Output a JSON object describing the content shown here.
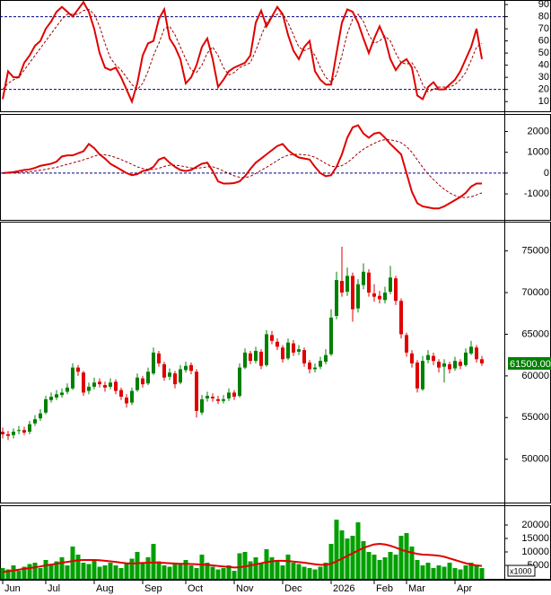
{
  "chart_data": [
    {
      "type": "line",
      "ylim": [
        2,
        93
      ],
      "yticks": [
        10,
        20,
        30,
        40,
        50,
        60,
        70,
        80,
        90
      ],
      "ref_lines": [
        20,
        80
      ],
      "ref_color": "#000080",
      "series": [
        {
          "color": "#e00000",
          "style": "solid",
          "values": [
            12,
            35,
            30,
            30,
            42,
            48,
            56,
            60,
            70,
            76,
            84,
            88,
            84,
            80,
            86,
            92,
            84,
            70,
            50,
            38,
            36,
            38,
            30,
            20,
            10,
            25,
            48,
            58,
            60,
            78,
            86,
            62,
            55,
            45,
            25,
            30,
            40,
            55,
            62,
            45,
            22,
            28,
            35,
            38,
            40,
            42,
            48,
            75,
            85,
            72,
            80,
            88,
            82,
            65,
            52,
            45,
            55,
            60,
            35,
            28,
            24,
            24,
            50,
            75,
            86,
            84,
            75,
            62,
            50,
            62,
            72,
            62,
            45,
            36,
            42,
            45,
            38,
            15,
            12,
            22,
            26,
            20,
            20,
            24,
            28,
            35,
            45,
            55,
            70,
            45
          ]
        },
        {
          "color": "#a00000",
          "style": "dashed",
          "values": [
            20,
            25,
            28,
            30,
            36,
            42,
            48,
            54,
            60,
            66,
            72,
            78,
            82,
            82,
            82,
            85,
            86,
            82,
            72,
            58,
            46,
            40,
            36,
            30,
            24,
            20,
            25,
            35,
            48,
            58,
            70,
            72,
            65,
            55,
            45,
            36,
            34,
            40,
            50,
            55,
            48,
            38,
            32,
            34,
            38,
            40,
            42,
            52,
            64,
            75,
            80,
            82,
            82,
            75,
            65,
            55,
            52,
            54,
            48,
            38,
            30,
            26,
            32,
            48,
            66,
            78,
            82,
            76,
            65,
            58,
            60,
            64,
            60,
            50,
            42,
            41,
            42,
            35,
            24,
            18,
            20,
            22,
            22,
            22,
            24,
            28,
            34,
            44,
            55,
            58
          ]
        }
      ]
    },
    {
      "type": "line",
      "ylim": [
        -2250,
        2800
      ],
      "yticks": [
        -1000,
        0,
        1000,
        2000
      ],
      "ref_lines": [
        0
      ],
      "ref_color": "#000080",
      "series": [
        {
          "color": "#e00000",
          "style": "solid",
          "values": [
            0,
            20,
            50,
            100,
            150,
            180,
            250,
            350,
            400,
            450,
            550,
            800,
            850,
            850,
            950,
            1050,
            1400,
            1200,
            900,
            700,
            450,
            300,
            150,
            0,
            -100,
            -50,
            100,
            150,
            300,
            650,
            750,
            500,
            300,
            150,
            100,
            150,
            300,
            450,
            500,
            100,
            -400,
            -500,
            -500,
            -480,
            -400,
            -150,
            200,
            500,
            700,
            900,
            1100,
            1300,
            1400,
            1100,
            900,
            750,
            700,
            650,
            300,
            0,
            -150,
            -100,
            300,
            900,
            1700,
            2200,
            2300,
            1900,
            1700,
            1900,
            1950,
            1700,
            1400,
            1150,
            900,
            0,
            -900,
            -1450,
            -1600,
            -1650,
            -1700,
            -1700,
            -1600,
            -1450,
            -1300,
            -1150,
            -950,
            -650,
            -500,
            -500
          ]
        },
        {
          "color": "#a00000",
          "style": "dashed",
          "values": [
            0,
            5,
            15,
            30,
            50,
            75,
            100,
            140,
            180,
            230,
            280,
            350,
            420,
            490,
            560,
            640,
            720,
            820,
            880,
            880,
            830,
            750,
            650,
            540,
            420,
            300,
            220,
            180,
            180,
            230,
            320,
            380,
            380,
            350,
            300,
            250,
            230,
            260,
            300,
            300,
            220,
            100,
            -20,
            -130,
            -200,
            -220,
            -150,
            -20,
            130,
            280,
            440,
            600,
            760,
            860,
            900,
            900,
            880,
            850,
            760,
            620,
            460,
            330,
            300,
            360,
            500,
            720,
            950,
            1150,
            1300,
            1430,
            1550,
            1610,
            1600,
            1550,
            1460,
            1280,
            1000,
            640,
            280,
            -40,
            -310,
            -560,
            -780,
            -950,
            -1080,
            -1160,
            -1180,
            -1140,
            -1050,
            -950
          ]
        }
      ]
    },
    {
      "type": "candlestick",
      "ylim": [
        44800,
        78400
      ],
      "yticks": [
        50000,
        55000,
        60000,
        65000,
        70000,
        75000
      ],
      "up_color": "#008000",
      "down_color": "#e00000",
      "open": [
        53300,
        53000,
        52900,
        53400,
        53500,
        53300,
        54300,
        54900,
        55600,
        57100,
        57400,
        57700,
        58100,
        58500,
        61000,
        60400,
        58200,
        58700,
        59300,
        58900,
        58700,
        59300,
        58300,
        57400,
        56800,
        58300,
        59700,
        59100,
        60300,
        62700,
        61400,
        59900,
        60300,
        59200,
        60700,
        61300,
        60500,
        55600,
        57300,
        57500,
        57200,
        57000,
        57300,
        58000,
        57600,
        61000,
        62700,
        61800,
        62900,
        61300,
        64900,
        64100,
        63400,
        62100,
        63900,
        62900,
        63100,
        61600,
        60800,
        61100,
        61700,
        62600,
        67200,
        71400,
        70100,
        72000,
        68100,
        70900,
        72400,
        69900,
        69600,
        69100,
        70100,
        71700,
        69000,
        64900,
        62700,
        61600,
        58400,
        61900,
        62400,
        61700,
        61100,
        61400,
        60900,
        61700,
        61300,
        62700,
        63400,
        62000
      ],
      "high": [
        53800,
        53400,
        53700,
        54000,
        53900,
        54600,
        55300,
        56000,
        57600,
        58000,
        58300,
        58500,
        59100,
        61500,
        61300,
        60600,
        59200,
        59800,
        59700,
        59300,
        59700,
        59600,
        58600,
        57800,
        58600,
        60300,
        60000,
        61000,
        63400,
        63000,
        61700,
        60900,
        60600,
        61300,
        61700,
        61600,
        60800,
        57700,
        58100,
        57900,
        57600,
        57700,
        58500,
        58300,
        61500,
        63300,
        63000,
        63500,
        63200,
        65500,
        65400,
        64500,
        63700,
        64500,
        64300,
        63700,
        63400,
        61900,
        61500,
        62300,
        63200,
        68000,
        72500,
        75500,
        73000,
        72400,
        71600,
        73500,
        72800,
        71000,
        70200,
        70700,
        73200,
        72000,
        69300,
        65200,
        63100,
        61900,
        62400,
        63100,
        62800,
        62000,
        62000,
        61700,
        62300,
        62000,
        63300,
        64200,
        63700,
        62400
      ],
      "low": [
        52500,
        52300,
        52500,
        53000,
        52900,
        53000,
        54000,
        54600,
        55400,
        56800,
        57100,
        57400,
        57800,
        58300,
        60000,
        57600,
        57800,
        58400,
        58600,
        58100,
        58400,
        57800,
        57100,
        56200,
        56500,
        58100,
        58600,
        58900,
        60100,
        61100,
        59400,
        59500,
        58500,
        59000,
        60400,
        60200,
        55000,
        55300,
        56900,
        56900,
        56600,
        56700,
        57000,
        57100,
        57400,
        60800,
        61400,
        61500,
        60800,
        61100,
        63800,
        63100,
        61600,
        61900,
        62400,
        62500,
        61100,
        60300,
        60400,
        60800,
        61400,
        62400,
        66800,
        69500,
        69600,
        66500,
        67600,
        70400,
        69500,
        68900,
        68700,
        68700,
        69800,
        68500,
        64500,
        62300,
        61000,
        58000,
        58200,
        61500,
        61300,
        60400,
        59200,
        60300,
        60600,
        60800,
        61100,
        62500,
        61600,
        61200
      ],
      "close": [
        53000,
        52800,
        53300,
        53500,
        53200,
        54200,
        54800,
        55500,
        57200,
        57500,
        57800,
        58000,
        58600,
        61000,
        60500,
        58000,
        58700,
        59200,
        59000,
        58600,
        59200,
        58200,
        57500,
        56700,
        58200,
        59800,
        59000,
        60500,
        62800,
        61500,
        59800,
        60400,
        59000,
        60800,
        61200,
        60600,
        55800,
        57200,
        57600,
        57300,
        57000,
        57200,
        58000,
        57500,
        61000,
        62800,
        61800,
        63000,
        61200,
        65000,
        64200,
        63500,
        62000,
        64000,
        62800,
        63200,
        61500,
        60800,
        61000,
        61800,
        62500,
        67000,
        71500,
        70000,
        72000,
        68000,
        71000,
        72500,
        70000,
        69500,
        69200,
        70000,
        71800,
        69000,
        65000,
        62800,
        61500,
        58500,
        61800,
        62500,
        61800,
        61000,
        61500,
        60800,
        61800,
        61200,
        62800,
        63500,
        62000,
        61500
      ],
      "last_value": 61500,
      "last_value_label": "61500.00",
      "last_color": "#008000"
    },
    {
      "type": "bar",
      "ylim": [
        0,
        27000
      ],
      "yticks": [
        5000,
        10000,
        15000,
        20000
      ],
      "color": "#00a000",
      "unit_label": "x1000",
      "categories": [
        "Jun",
        null,
        null,
        null,
        null,
        null,
        null,
        null,
        "Jul",
        null,
        null,
        null,
        null,
        null,
        null,
        null,
        null,
        "Aug",
        null,
        null,
        null,
        null,
        null,
        null,
        null,
        null,
        "Sep",
        null,
        null,
        null,
        null,
        null,
        null,
        null,
        "Oct",
        null,
        null,
        null,
        null,
        null,
        null,
        null,
        null,
        "Nov",
        null,
        null,
        null,
        null,
        null,
        null,
        null,
        null,
        "Dec",
        null,
        null,
        null,
        null,
        null,
        null,
        null,
        null,
        "2026",
        null,
        null,
        null,
        null,
        null,
        null,
        null,
        "Feb",
        null,
        null,
        null,
        null,
        null,
        "Mar",
        null,
        null,
        null,
        null,
        null,
        null,
        null,
        null,
        "Apr",
        null,
        null,
        null,
        null,
        null
      ],
      "values": [
        4000,
        3500,
        5000,
        3000,
        4500,
        5500,
        6000,
        4000,
        7000,
        5500,
        6500,
        8000,
        5000,
        12000,
        9000,
        6000,
        5500,
        7000,
        4500,
        5000,
        6000,
        5000,
        4000,
        5500,
        7500,
        10000,
        6000,
        8000,
        13000,
        6500,
        5000,
        4500,
        6000,
        5500,
        7000,
        5000,
        4000,
        9000,
        6000,
        4500,
        3500,
        4000,
        5000,
        3000,
        9500,
        10000,
        6500,
        8000,
        6000,
        11000,
        8000,
        7000,
        5000,
        9000,
        6000,
        5500,
        4500,
        4000,
        3500,
        4500,
        6000,
        13000,
        22000,
        18000,
        15000,
        16000,
        21000,
        14000,
        10000,
        9000,
        7000,
        8000,
        10000,
        9000,
        16000,
        17000,
        12000,
        7000,
        5000,
        6000,
        4000,
        5000,
        4500,
        6000,
        4000,
        3500,
        5000,
        6000,
        5000,
        4000
      ],
      "line_color": "#e00000",
      "line_values": [
        2500,
        2800,
        3100,
        3400,
        3700,
        4000,
        4300,
        4600,
        5000,
        5300,
        5600,
        6000,
        6300,
        6600,
        6900,
        7000,
        7000,
        7000,
        6900,
        6700,
        6500,
        6300,
        6000,
        5800,
        5700,
        5800,
        5900,
        6000,
        6100,
        6000,
        5900,
        5800,
        5700,
        5600,
        5600,
        5500,
        5400,
        5300,
        5200,
        5000,
        4800,
        4600,
        4400,
        4200,
        4300,
        4600,
        5000,
        5400,
        5800,
        6200,
        6500,
        6700,
        6700,
        6600,
        6400,
        6200,
        6000,
        5700,
        5400,
        5200,
        5200,
        5600,
        6500,
        7500,
        8500,
        9500,
        10500,
        11500,
        12200,
        12800,
        13000,
        12800,
        12300,
        11600,
        10800,
        10200,
        9700,
        9300,
        9000,
        8900,
        8800,
        8600,
        8200,
        7600,
        7000,
        6400,
        5800,
        5300,
        5000,
        4800
      ]
    }
  ]
}
